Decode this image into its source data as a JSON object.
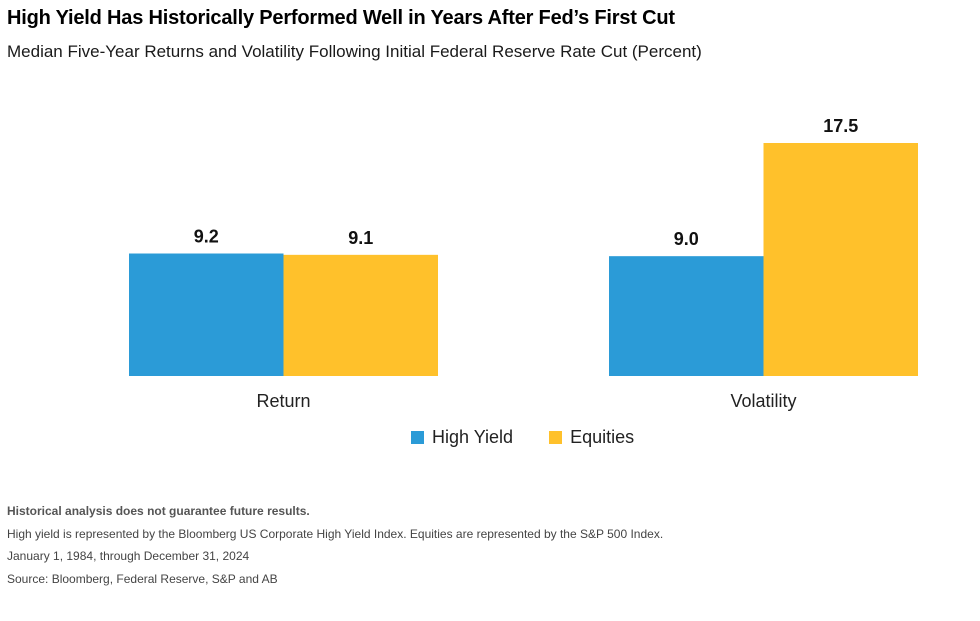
{
  "title": "High Yield Has Historically Performed Well in Years After Fed’s First Cut",
  "subtitle": "Median Five-Year Returns and Volatility Following Initial Federal Reserve Rate Cut (Percent)",
  "colors": {
    "high_yield": "#2B9BD7",
    "equities": "#FFC12B"
  },
  "chart_data": {
    "type": "bar",
    "categories": [
      "Return",
      "Volatility"
    ],
    "series": [
      {
        "name": "High Yield",
        "values": [
          9.2,
          9.0
        ],
        "labels": [
          "9.2",
          "9.0"
        ]
      },
      {
        "name": "Equities",
        "values": [
          9.1,
          17.5
        ],
        "labels": [
          "9.1",
          "17.5"
        ]
      }
    ],
    "ylim": [
      0,
      17.5
    ],
    "grid": false,
    "legend": "bottom-center"
  },
  "legend": {
    "high_yield": "High Yield",
    "equities": "Equities"
  },
  "notes": [
    "Historical analysis does not guarantee future results.",
    "High yield is represented by the Bloomberg US Corporate High Yield Index. Equities are represented by the S&P 500 Index.",
    "January 1, 1984, through December 31, 2024",
    "Source: Bloomberg, Federal Reserve, S&P and AB"
  ]
}
